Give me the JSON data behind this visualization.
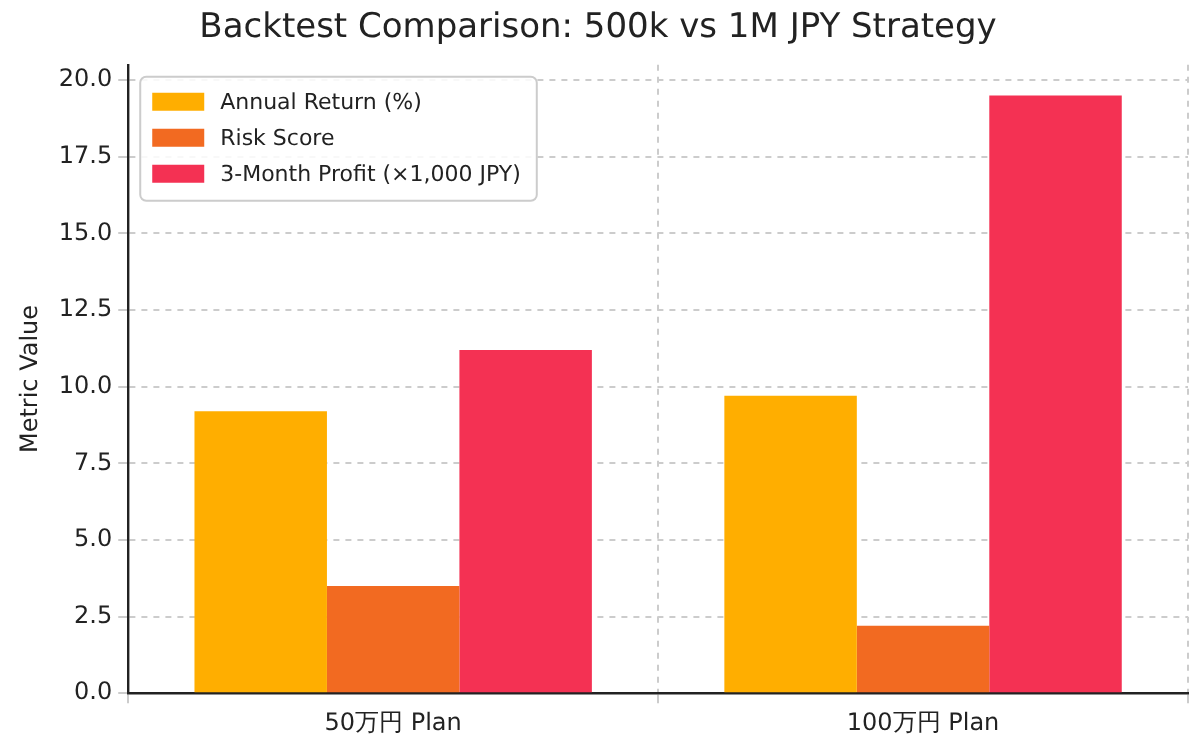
{
  "chart_data": {
    "type": "bar",
    "title": "Backtest Comparison: 500k vs 1M JPY Strategy",
    "ylabel": "Metric Value",
    "categories": [
      "50万円 Plan",
      "100万円 Plan"
    ],
    "series": [
      {
        "name": "Annual Return (%)",
        "color": "#ffae00",
        "values": [
          9.2,
          9.7
        ]
      },
      {
        "name": "Risk Score",
        "color": "#f26a21",
        "values": [
          3.5,
          2.2
        ]
      },
      {
        "name": "3-Month Profit (×1,000 JPY)",
        "color": "#f43153",
        "values": [
          11.2,
          19.5
        ]
      }
    ],
    "ylim": [
      0,
      20.5
    ],
    "yticks": [
      {
        "value": 0,
        "label": "0.0"
      },
      {
        "value": 2.5,
        "label": "2.5"
      },
      {
        "value": 5,
        "label": "5.0"
      },
      {
        "value": 7.5,
        "label": "7.5"
      },
      {
        "value": 10,
        "label": "10.0"
      },
      {
        "value": 12.5,
        "label": "12.5"
      },
      {
        "value": 15,
        "label": "15.0"
      },
      {
        "value": 17.5,
        "label": "17.5"
      },
      {
        "value": 20,
        "label": "20.0"
      }
    ],
    "grid": true,
    "legend": "top left"
  }
}
